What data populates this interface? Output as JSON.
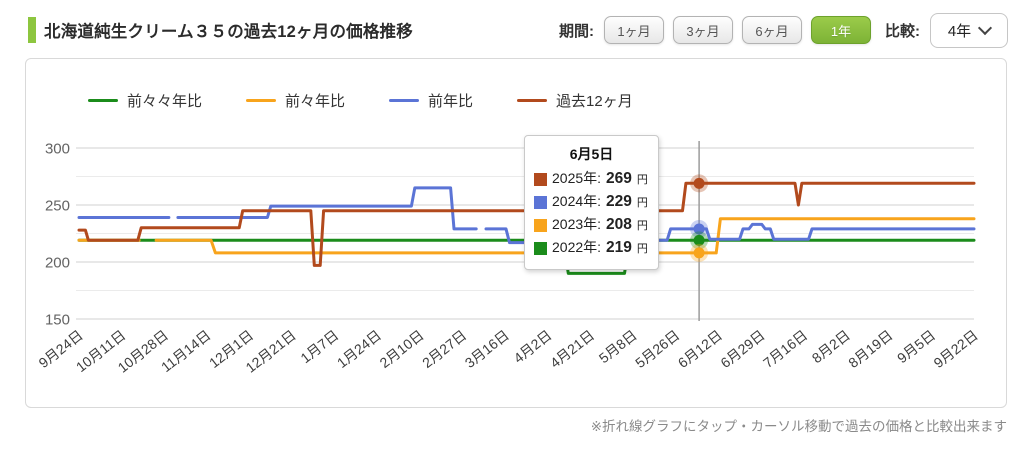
{
  "header": {
    "title": "北海道純生クリーム３５の過去12ヶ月の価格推移",
    "accent_color": "#8dc63f",
    "period_label": "期間:",
    "periods": [
      {
        "label": "1ヶ月",
        "selected": false
      },
      {
        "label": "3ヶ月",
        "selected": false
      },
      {
        "label": "6ヶ月",
        "selected": false
      },
      {
        "label": "1年",
        "selected": true
      }
    ],
    "selected_button_color": "#8bc34a",
    "compare_label": "比較:",
    "compare_value": "4年"
  },
  "footnote": "※折れ線グラフにタップ・カーソル移動で過去の価格と比較出来ます",
  "chart_data": {
    "type": "line",
    "title": "",
    "xlabel": "",
    "ylabel": "",
    "unit": "円",
    "grid": true,
    "legend_position": "top",
    "ylim": [
      150,
      300
    ],
    "y_major_ticks": [
      300,
      250,
      200,
      150
    ],
    "y_minor_ticks": [
      275,
      225,
      175
    ],
    "x_labels": [
      "9月24日",
      "10月11日",
      "10月28日",
      "11月14日",
      "12月1日",
      "12月21日",
      "1月7日",
      "1月24日",
      "2月10日",
      "2月27日",
      "3月16日",
      "4月2日",
      "4月21日",
      "5月8日",
      "5月26日",
      "6月12日",
      "6月29日",
      "7月16日",
      "8月2日",
      "8月19日",
      "9月5日",
      "9月22日"
    ],
    "series": [
      {
        "name": "前々々年比",
        "year": "2022年",
        "color": "#1b8c1b",
        "z": 1,
        "points": [
          [
            0,
            219
          ],
          [
            11.36,
            219
          ],
          [
            11.48,
            190
          ],
          [
            12.8,
            190
          ],
          [
            12.92,
            219
          ],
          [
            21,
            219
          ]
        ]
      },
      {
        "name": "前々年比",
        "year": "2023年",
        "color": "#f8a41c",
        "z": 2,
        "points": [
          [
            0,
            219
          ],
          [
            1.41,
            219
          ],
          null,
          [
            1.81,
            219
          ],
          [
            3.1,
            219
          ],
          [
            3.2,
            208
          ],
          [
            14.95,
            208
          ],
          [
            15.05,
            238
          ],
          [
            21,
            238
          ]
        ]
      },
      {
        "name": "前年比",
        "year": "2024年",
        "color": "#5b74d6",
        "z": 3,
        "points": [
          [
            0,
            239
          ],
          [
            2.11,
            239
          ],
          null,
          [
            2.32,
            239
          ],
          [
            4.42,
            239
          ],
          [
            4.5,
            249
          ],
          [
            7.8,
            249
          ],
          [
            7.88,
            265
          ],
          [
            8.72,
            265
          ],
          [
            8.8,
            229
          ],
          [
            9.32,
            229
          ],
          null,
          [
            9.55,
            229
          ],
          [
            10.02,
            229
          ],
          [
            10.1,
            217
          ],
          [
            12.3,
            217
          ],
          [
            12.4,
            219
          ],
          [
            13.8,
            219
          ],
          [
            13.88,
            229
          ],
          [
            14.72,
            229
          ],
          [
            14.8,
            220
          ],
          [
            15.5,
            220
          ],
          [
            15.58,
            229
          ],
          [
            15.72,
            229
          ],
          [
            15.8,
            233
          ],
          [
            16.02,
            233
          ],
          [
            16.1,
            229
          ],
          [
            16.22,
            229
          ],
          [
            16.3,
            220
          ],
          [
            17.12,
            220
          ],
          [
            17.2,
            229
          ],
          [
            21,
            229
          ]
        ]
      },
      {
        "name": "過去12ヶ月",
        "year": "2025年",
        "color": "#b24a1d",
        "z": 4,
        "points": [
          [
            0,
            228
          ],
          [
            0.15,
            228
          ],
          [
            0.22,
            219
          ],
          [
            1.38,
            219
          ],
          [
            1.46,
            230
          ],
          [
            3.76,
            230
          ],
          [
            3.84,
            245
          ],
          [
            5.44,
            245
          ],
          [
            5.52,
            197
          ],
          [
            5.66,
            197
          ],
          [
            5.74,
            245
          ],
          [
            14.16,
            245
          ],
          [
            14.24,
            269
          ],
          [
            16.8,
            269
          ],
          [
            16.88,
            250
          ],
          [
            16.96,
            269
          ],
          [
            21,
            269
          ]
        ]
      }
    ],
    "crosshair": {
      "x_index": 14.55,
      "date": "6月5日"
    },
    "tooltip": {
      "title": "6月5日",
      "rows": [
        {
          "color": "#b24a1d",
          "label": "2025年:",
          "value": "269",
          "unit": "円"
        },
        {
          "color": "#5b74d6",
          "label": "2024年:",
          "value": "229",
          "unit": "円"
        },
        {
          "color": "#f8a41c",
          "label": "2023年:",
          "value": "208",
          "unit": "円"
        },
        {
          "color": "#1b8c1b",
          "label": "2022年:",
          "value": "219",
          "unit": "円"
        }
      ]
    },
    "markers": [
      {
        "color": "#b24a1d",
        "value": 269
      },
      {
        "color": "#5b74d6",
        "value": 229
      },
      {
        "color": "#1b8c1b",
        "value": 219
      },
      {
        "color": "#f8a41c",
        "value": 208
      }
    ]
  }
}
